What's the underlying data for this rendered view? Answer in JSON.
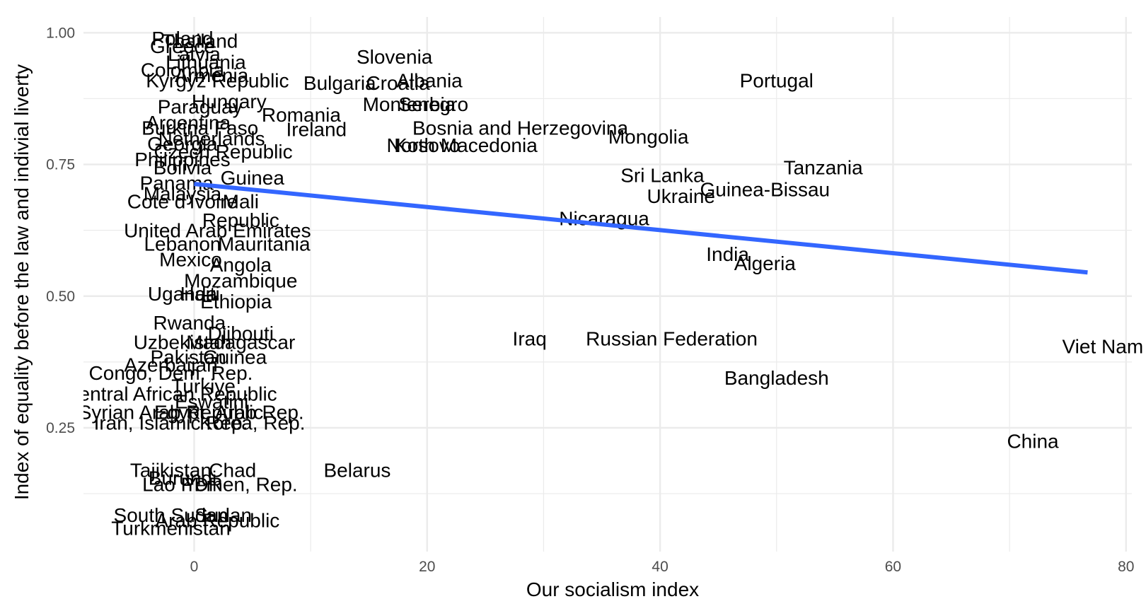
{
  "chart_data": {
    "type": "scatter",
    "title": "",
    "xlabel": "Our socialism index",
    "ylabel": "Index of equality before the law and indivial liverty",
    "xlim": [
      -9.5,
      80.5
    ],
    "ylim": [
      0.015,
      1.03
    ],
    "x_ticks": [
      0,
      20,
      40,
      60,
      80
    ],
    "x_tick_labels": [
      "0",
      "20",
      "40",
      "60",
      "80"
    ],
    "y_ticks": [
      0.25,
      0.5,
      0.75,
      1.0
    ],
    "y_tick_labels": [
      "0.25",
      "0.50",
      "0.75",
      "1.00"
    ],
    "grid": true,
    "trend_line": {
      "type": "linear",
      "color": "#3366ff",
      "x": [
        0,
        76.7
      ],
      "y": [
        0.713,
        0.545
      ]
    },
    "points": [
      {
        "label": "Slovenia",
        "x": 17.2,
        "y": 0.955
      },
      {
        "label": "Albania",
        "x": 20.2,
        "y": 0.91
      },
      {
        "label": "Croatia",
        "x": 17.5,
        "y": 0.905
      },
      {
        "label": "Bulgaria",
        "x": 12.5,
        "y": 0.905
      },
      {
        "label": "Portugal",
        "x": 50.0,
        "y": 0.91
      },
      {
        "label": "Montenegro",
        "x": 19.0,
        "y": 0.865
      },
      {
        "label": "Serbia",
        "x": 20.0,
        "y": 0.865
      },
      {
        "label": "Romania",
        "x": 9.2,
        "y": 0.845
      },
      {
        "label": "Ireland",
        "x": 10.5,
        "y": 0.817
      },
      {
        "label": "Bosnia and Herzegovina",
        "x": 28.0,
        "y": 0.82
      },
      {
        "label": "Mongolia",
        "x": 39.0,
        "y": 0.803
      },
      {
        "label": "North Macedonia",
        "x": 23.0,
        "y": 0.787
      },
      {
        "label": "Kosovo",
        "x": 20.0,
        "y": 0.787
      },
      {
        "label": "Sri Lanka",
        "x": 40.2,
        "y": 0.73
      },
      {
        "label": "Tanzania",
        "x": 54.0,
        "y": 0.745
      },
      {
        "label": "Guinea-Bissau",
        "x": 49.0,
        "y": 0.703
      },
      {
        "label": "Ukraine",
        "x": 41.8,
        "y": 0.69
      },
      {
        "label": "Nicaragua",
        "x": 35.2,
        "y": 0.648
      },
      {
        "label": "India",
        "x": 45.8,
        "y": 0.58
      },
      {
        "label": "Algeria",
        "x": 49.0,
        "y": 0.563
      },
      {
        "label": "Iraq",
        "x": 28.8,
        "y": 0.42
      },
      {
        "label": "Russian Federation",
        "x": 41.0,
        "y": 0.42
      },
      {
        "label": "Viet Nam",
        "x": 78.0,
        "y": 0.405
      },
      {
        "label": "Bangladesh",
        "x": 50.0,
        "y": 0.345
      },
      {
        "label": "China",
        "x": 72.0,
        "y": 0.225
      },
      {
        "label": "Belarus",
        "x": 14.0,
        "y": 0.17
      },
      {
        "label": "Guinea",
        "x": 5.0,
        "y": 0.725
      },
      {
        "label": "Mali",
        "x": 4.0,
        "y": 0.68
      },
      {
        "label": "Cote d'Ivoire",
        "x": -1.0,
        "y": 0.68
      },
      {
        "label": "Malaysia",
        "x": -1.0,
        "y": 0.695
      },
      {
        "label": "Republic",
        "x": 4.0,
        "y": 0.645
      },
      {
        "label": "United Arab Emirates",
        "x": 2.0,
        "y": 0.625
      },
      {
        "label": "Mauritania",
        "x": 6.0,
        "y": 0.6
      },
      {
        "label": "Lebanon",
        "x": -1.0,
        "y": 0.6
      },
      {
        "label": "Mexico",
        "x": -0.3,
        "y": 0.57
      },
      {
        "label": "Angola",
        "x": 4.0,
        "y": 0.56
      },
      {
        "label": "Mozambique",
        "x": 4.0,
        "y": 0.53
      },
      {
        "label": "Uganda",
        "x": -1.0,
        "y": 0.505
      },
      {
        "label": "Haiti",
        "x": 0.5,
        "y": 0.505
      },
      {
        "label": "Ethiopia",
        "x": 3.6,
        "y": 0.49
      },
      {
        "label": "Rwanda",
        "x": -0.4,
        "y": 0.45
      },
      {
        "label": "Djibouti",
        "x": 4.0,
        "y": 0.43
      },
      {
        "label": "Madagascar",
        "x": 4.0,
        "y": 0.413
      },
      {
        "label": "Uzbekistan",
        "x": -1.0,
        "y": 0.413
      },
      {
        "label": "Pakistan",
        "x": -0.5,
        "y": 0.385
      },
      {
        "label": "Guinea",
        "x": 3.5,
        "y": 0.385
      },
      {
        "label": "Azerbaijan",
        "x": -2.0,
        "y": 0.37
      },
      {
        "label": "Congo, Dem. Rep.",
        "x": -2.0,
        "y": 0.355
      },
      {
        "label": "Turkiye",
        "x": 0.8,
        "y": 0.33
      },
      {
        "label": "Central African Republic",
        "x": -2.0,
        "y": 0.315
      },
      {
        "label": "Eswatini",
        "x": 1.5,
        "y": 0.3
      },
      {
        "label": "Syrian Arab Republic",
        "x": -2.0,
        "y": 0.28
      },
      {
        "label": "Egypt, Arab Rep.",
        "x": 3.0,
        "y": 0.28
      },
      {
        "label": "Iran, Islamic Rep.",
        "x": -2.0,
        "y": 0.26
      },
      {
        "label": "Korea, Rep.",
        "x": 5.0,
        "y": 0.26
      },
      {
        "label": "Chad",
        "x": 3.3,
        "y": 0.17
      },
      {
        "label": "Tajikistan",
        "x": -2.0,
        "y": 0.17
      },
      {
        "label": "Burundi",
        "x": -1.0,
        "y": 0.155
      },
      {
        "label": "Yemen, Rep.",
        "x": 4.0,
        "y": 0.143
      },
      {
        "label": "Lao PDR",
        "x": -1.0,
        "y": 0.143
      },
      {
        "label": "South Sudan",
        "x": -2.0,
        "y": 0.085
      },
      {
        "label": "Sudan",
        "x": 2.5,
        "y": 0.085
      },
      {
        "label": "Arab Republic",
        "x": 2.0,
        "y": 0.075
      },
      {
        "label": "Turkmenistan",
        "x": -2.0,
        "y": 0.06
      },
      {
        "label": "Poland",
        "x": -1.0,
        "y": 0.99
      },
      {
        "label": "Thailand",
        "x": 0.5,
        "y": 0.985
      },
      {
        "label": "Greece",
        "x": -1.0,
        "y": 0.975
      },
      {
        "label": "Latvia",
        "x": 0.0,
        "y": 0.96
      },
      {
        "label": "Lithuania",
        "x": 1.0,
        "y": 0.945
      },
      {
        "label": "Colombia",
        "x": -1.0,
        "y": 0.93
      },
      {
        "label": "Armenia",
        "x": 1.5,
        "y": 0.92
      },
      {
        "label": "Kyrgyz Republic",
        "x": 2.0,
        "y": 0.91
      },
      {
        "label": "Hungary",
        "x": 3.0,
        "y": 0.87
      },
      {
        "label": "Paraguay",
        "x": 0.5,
        "y": 0.86
      },
      {
        "label": "Argentina",
        "x": -0.5,
        "y": 0.83
      },
      {
        "label": "Burkina Faso",
        "x": 0.5,
        "y": 0.82
      },
      {
        "label": "Netherlands",
        "x": 1.5,
        "y": 0.8
      },
      {
        "label": "Georgia",
        "x": -1.0,
        "y": 0.79
      },
      {
        "label": "Czech Republic",
        "x": 2.5,
        "y": 0.775
      },
      {
        "label": "Philippines",
        "x": -1.0,
        "y": 0.76
      },
      {
        "label": "Bolivia",
        "x": -1.0,
        "y": 0.745
      },
      {
        "label": "Panama",
        "x": -1.5,
        "y": 0.715
      }
    ]
  }
}
